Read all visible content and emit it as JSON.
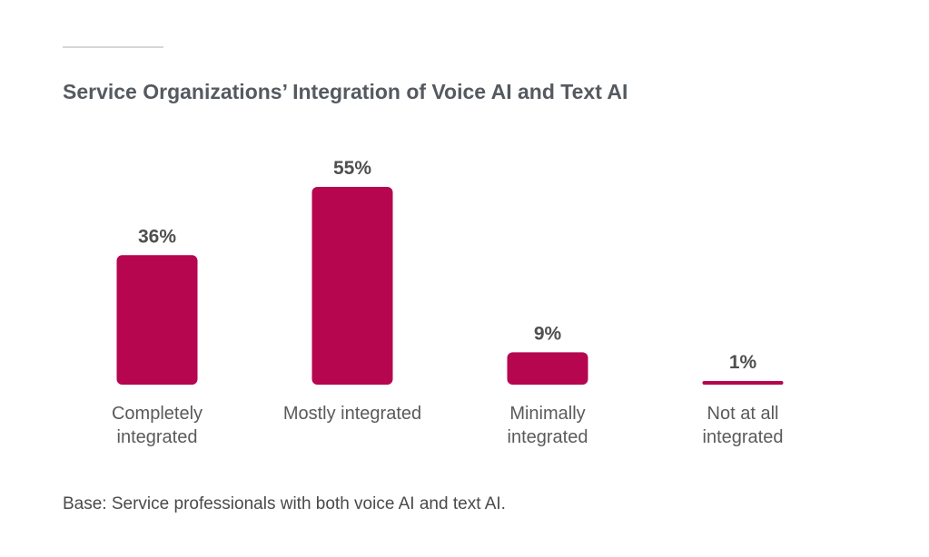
{
  "title": "Service Organizations’ Integration of Voice AI and Text AI",
  "footnote": "Base: Service professionals with both voice AI and text AI.",
  "colors": {
    "bar": "#b5064f",
    "value_text": "#4f4f4f",
    "category_text": "#5a5a5a"
  },
  "chart_data": {
    "type": "bar",
    "title": "Service Organizations’ Integration of Voice AI and Text AI",
    "categories": [
      [
        "Completely",
        "integrated"
      ],
      [
        "Mostly integrated"
      ],
      [
        "Minimally",
        "integrated"
      ],
      [
        "Not at all",
        "integrated"
      ]
    ],
    "values": [
      36,
      55,
      9,
      1
    ],
    "value_labels": [
      "36%",
      "55%",
      "9%",
      "1%"
    ],
    "unit": "%",
    "ylim": [
      0,
      55
    ],
    "grid": false,
    "legend": "none"
  }
}
